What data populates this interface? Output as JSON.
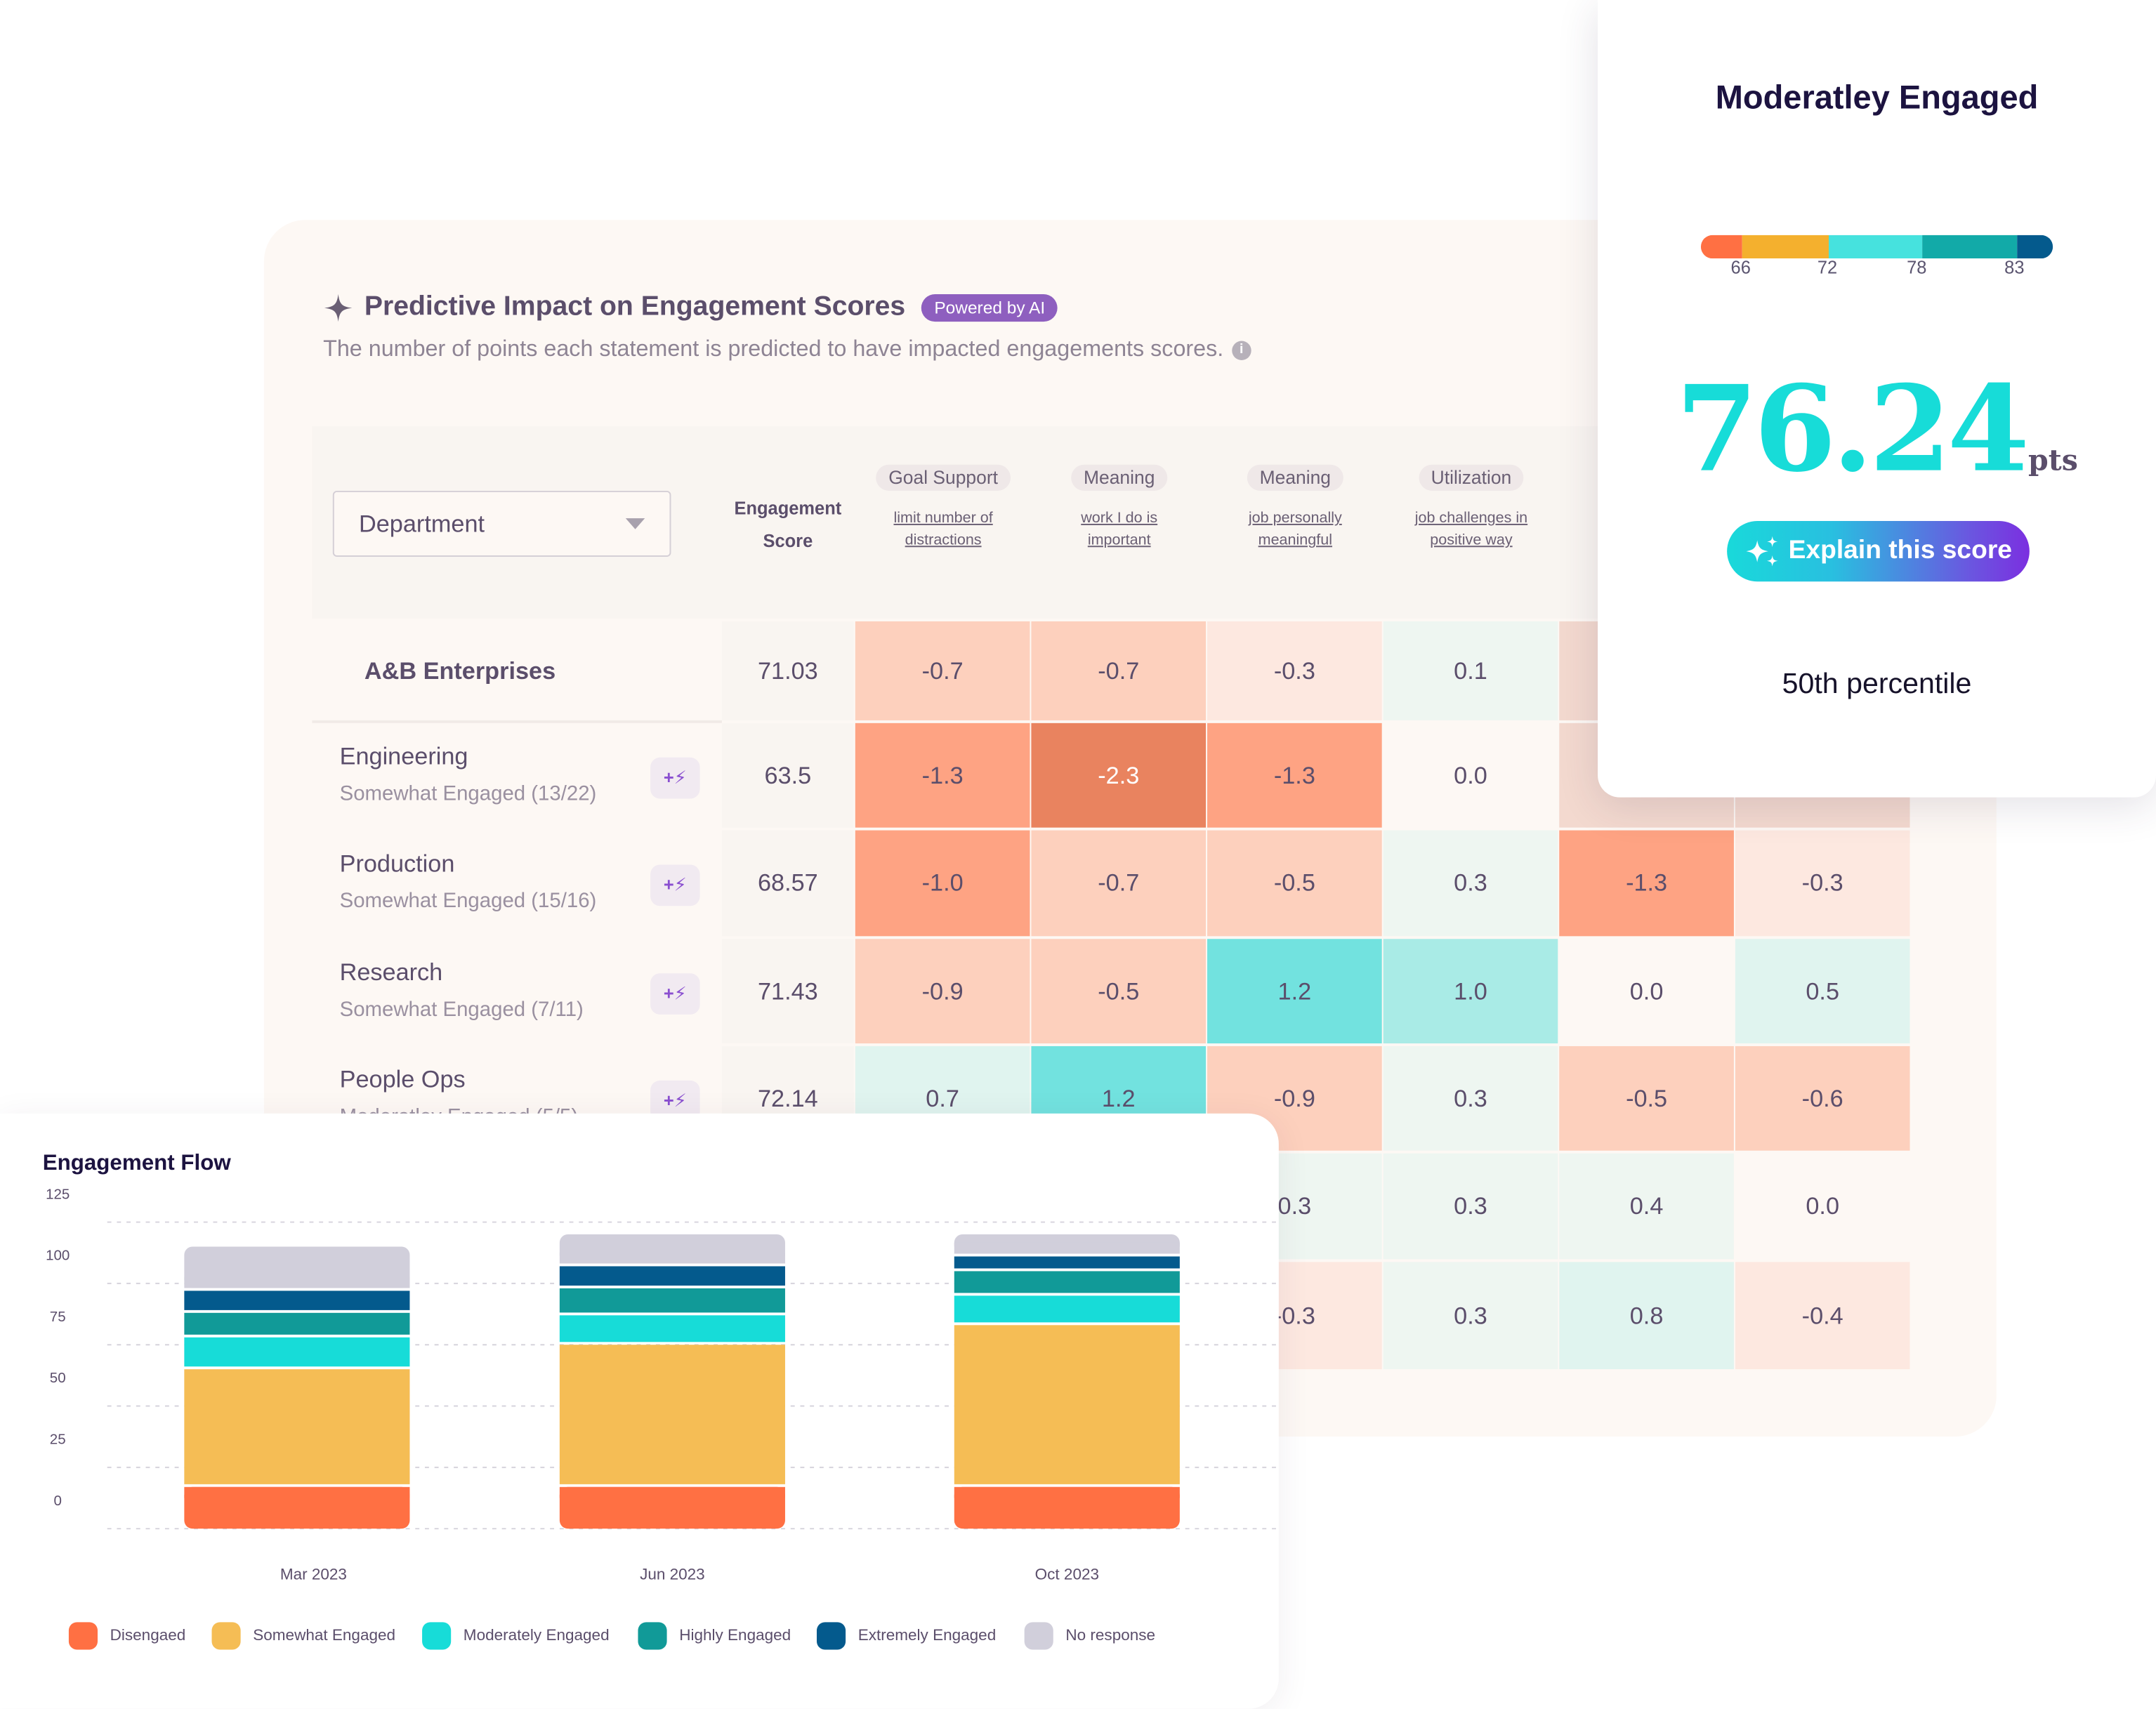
{
  "impact": {
    "title": "Predictive Impact on Engagement Scores",
    "badge": "Powered by AI",
    "subtitle": "The number of points each statement is predicted to have impacted engagements scores.",
    "info_icon": "i",
    "dropdown": {
      "value": "Department"
    },
    "score_header": [
      "Engagement",
      "Score"
    ],
    "columns": [
      {
        "category": "Goal Support",
        "statement": [
          "limit number of",
          "distractions"
        ]
      },
      {
        "category": "Meaning",
        "statement": [
          "work I do is",
          "important"
        ]
      },
      {
        "category": "Meaning",
        "statement": [
          "job personally",
          "meaningful"
        ]
      },
      {
        "category": "Utilization",
        "statement": [
          "job challenges in",
          "positive way"
        ]
      }
    ],
    "boost_icon": "+⚡",
    "rows": [
      {
        "name": "A&B Enterprises",
        "subtitle": "",
        "score": "71.03",
        "values": [
          "-0.7",
          "-0.7",
          "-0.3",
          "0.1",
          null,
          null
        ]
      },
      {
        "name": "Engineering",
        "subtitle": "Somewhat Engaged (13/22)",
        "score": "63.5",
        "values": [
          "-1.3",
          "-2.3",
          "-1.3",
          "0.0",
          null,
          null
        ]
      },
      {
        "name": "Production",
        "subtitle": "Somewhat Engaged (15/16)",
        "score": "68.57",
        "values": [
          "-1.0",
          "-0.7",
          "-0.5",
          "0.3",
          "-1.3",
          "-0.3"
        ]
      },
      {
        "name": "Research",
        "subtitle": "Somewhat Engaged (7/11)",
        "score": "71.43",
        "values": [
          "-0.9",
          "-0.5",
          "1.2",
          "1.0",
          "0.0",
          "0.5"
        ]
      },
      {
        "name": "People Ops",
        "subtitle": "Moderatley Engaged (5/5)",
        "score": "72.14",
        "values": [
          "0.7",
          "1.2",
          "-0.9",
          "0.3",
          "-0.5",
          "-0.6"
        ]
      },
      {
        "name": "",
        "subtitle": "",
        "score": "",
        "values": [
          null,
          null,
          "0.3",
          "0.3",
          "0.4",
          "0.0"
        ]
      },
      {
        "name": "",
        "subtitle": "",
        "score": "",
        "values": [
          null,
          null,
          "-0.3",
          "0.3",
          "0.8",
          "-0.4"
        ]
      }
    ]
  },
  "score_card": {
    "title": "Moderatley Engaged",
    "scale_ticks": [
      "66",
      "72",
      "78",
      "83"
    ],
    "scale_colors": [
      "#ff7043",
      "#f4b02e",
      "#46e2de",
      "#12aaa8",
      "#045a8d"
    ],
    "score": "76.24",
    "unit": "pts",
    "button": "Explain this score",
    "percentile": "50th percentile"
  },
  "chart_data": {
    "type": "bar",
    "stacked": true,
    "title": "Engagement Flow",
    "categories": [
      "Mar 2023",
      "Jun 2023",
      "Oct 2023"
    ],
    "ylim": [
      0,
      125
    ],
    "yticks": [
      0,
      25,
      50,
      75,
      100,
      125
    ],
    "grid": true,
    "legend": "bottom",
    "series": [
      {
        "name": "Disengaed",
        "color": "#ff7043",
        "values": [
          17,
          17,
          17
        ]
      },
      {
        "name": "Somewhat Engaged",
        "color": "#f5bd55",
        "values": [
          48,
          58,
          66
        ]
      },
      {
        "name": "Moderately Engaged",
        "color": "#17dcd8",
        "values": [
          13,
          12,
          12
        ]
      },
      {
        "name": "Highly Engaged",
        "color": "#119a98",
        "values": [
          10,
          11,
          10
        ]
      },
      {
        "name": "Extremely Engaged",
        "color": "#045a8d",
        "values": [
          9,
          9,
          6
        ]
      },
      {
        "name": "No response",
        "color": "#d1cfdb",
        "values": [
          18,
          13,
          9
        ]
      }
    ]
  }
}
